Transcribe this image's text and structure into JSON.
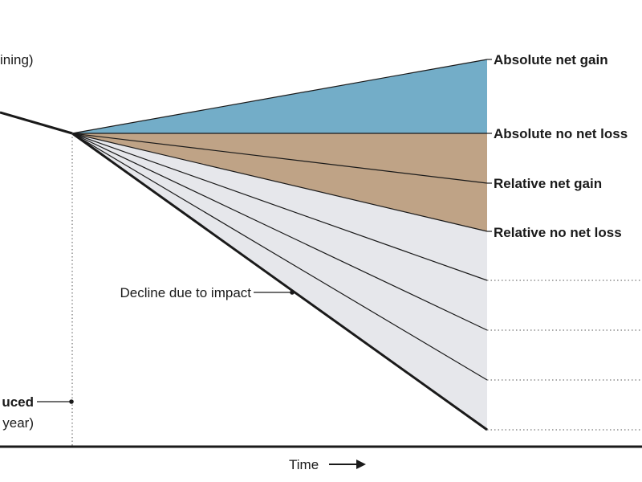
{
  "diagram": {
    "top_left_label": "ining)",
    "right_labels": {
      "absolute_net_gain": "Absolute net gain",
      "absolute_no_net_loss": "Absolute no net loss",
      "relative_net_gain": "Relative net gain",
      "relative_no_net_loss": "Relative no net loss"
    },
    "decline_label": "Decline due to impact",
    "bottom_left_label_line1": "uced",
    "bottom_left_label_line2": "year)",
    "x_axis_label": "Time",
    "colors": {
      "net_gain_fill": "#73adc8",
      "no_net_loss_fill": "#bfa386",
      "decline_fill": "#e6e7eb",
      "line": "#1a1a1a"
    }
  }
}
